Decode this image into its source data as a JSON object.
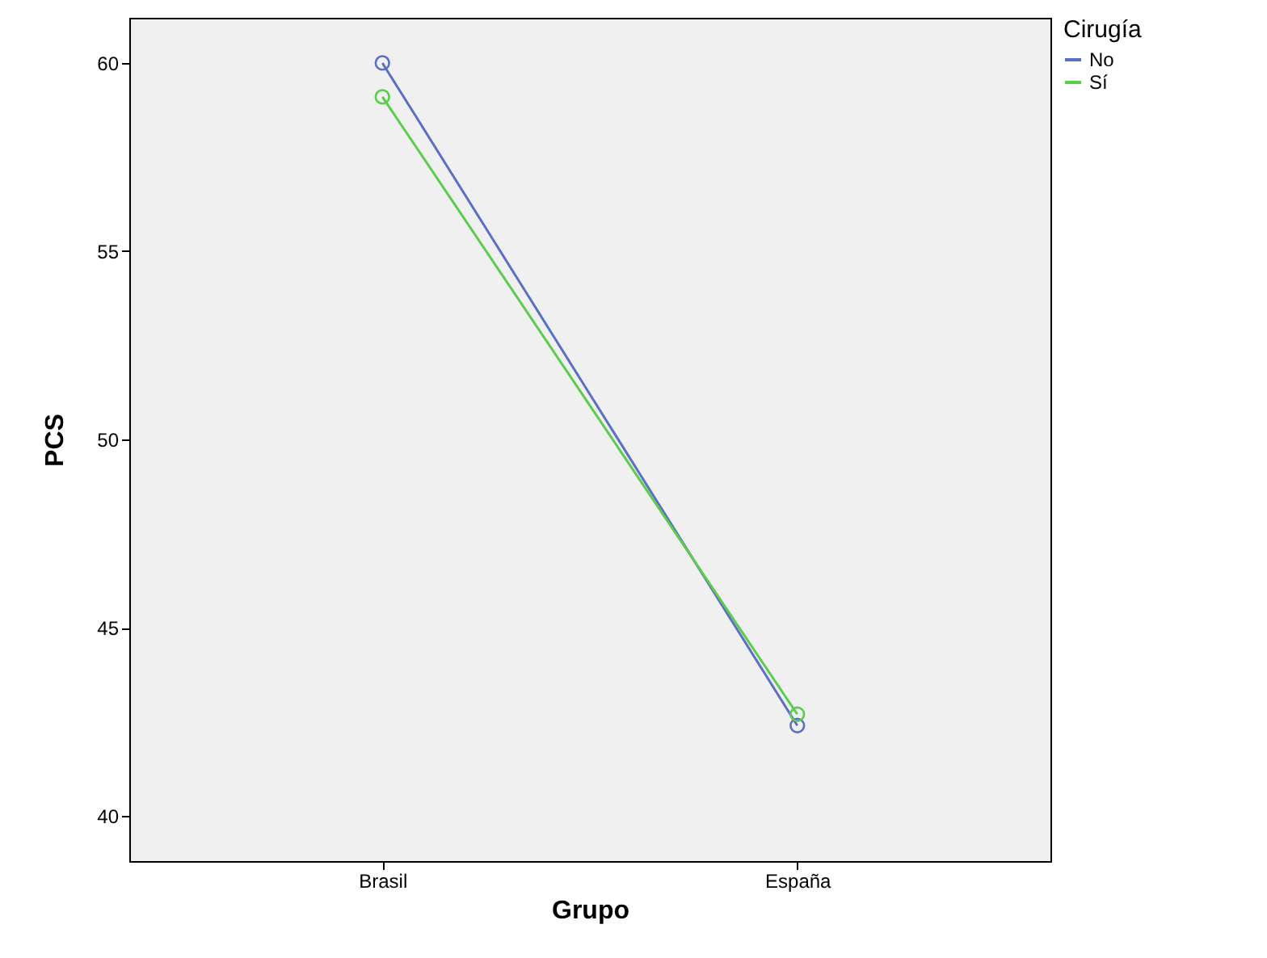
{
  "chart_data": {
    "type": "line",
    "xlabel": "Grupo",
    "ylabel": "PCS",
    "legend_title": "Cirugía",
    "categories": [
      "Brasil",
      "España"
    ],
    "series": [
      {
        "name": "No",
        "color": "#5b6fc4",
        "values": [
          60.0,
          42.4
        ]
      },
      {
        "name": "Sí",
        "color": "#5ccc4e",
        "values": [
          59.1,
          42.7
        ]
      }
    ],
    "ylim": [
      38.8,
      61.2
    ],
    "yticks": [
      40,
      45,
      50,
      55,
      60
    ],
    "grid": false,
    "legend": "top right",
    "marker": "circle",
    "line_style": "solid"
  }
}
